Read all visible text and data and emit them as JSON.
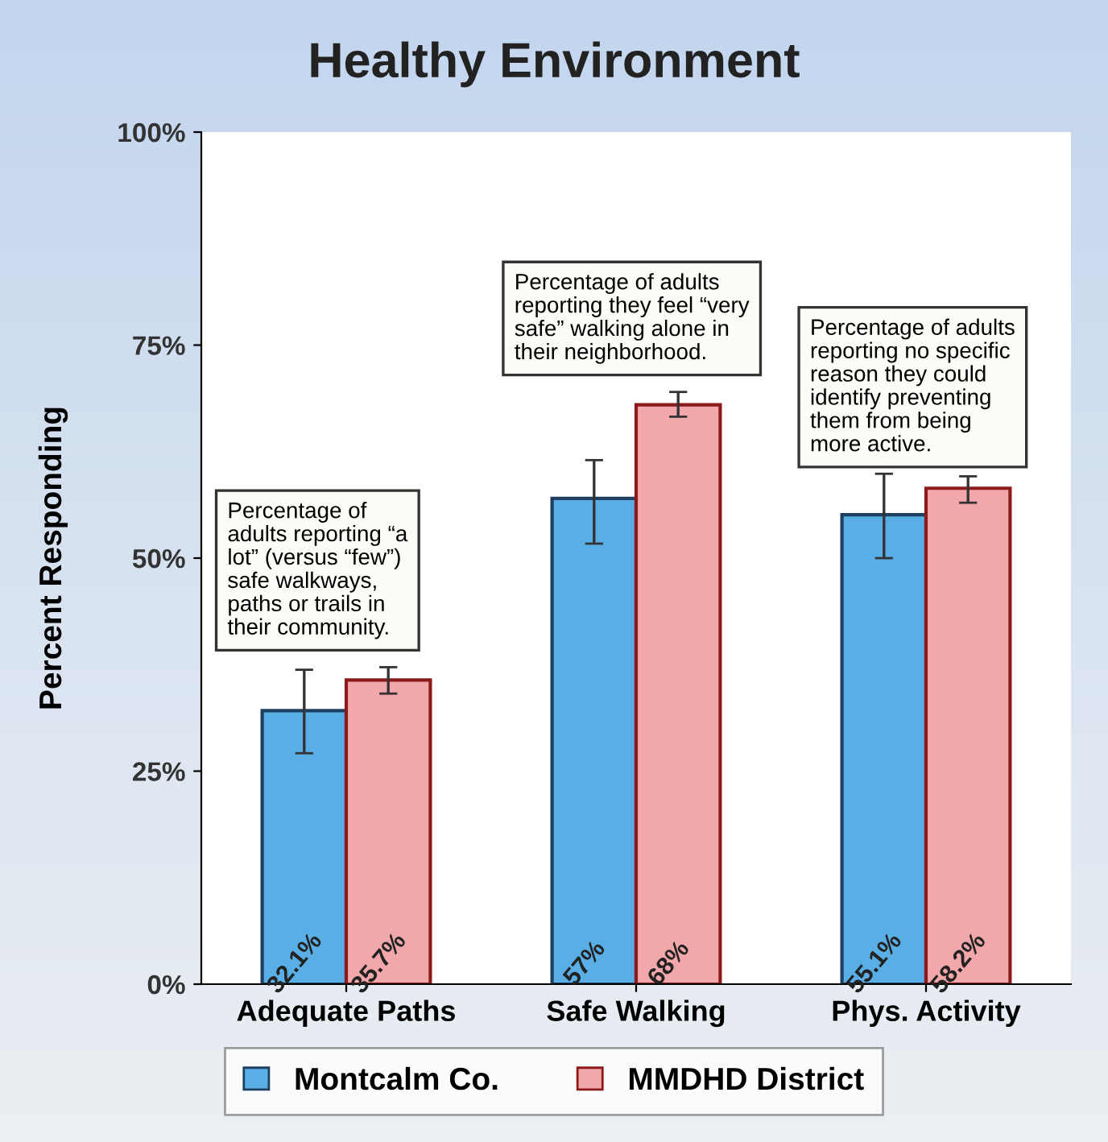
{
  "chart_data": {
    "type": "bar",
    "title": "Healthy Environment",
    "ylabel": "Percent Responding",
    "categories": [
      "Adequate Paths",
      "Safe Walking",
      "Phys. Activity"
    ],
    "series": [
      {
        "name": "Montcalm Co.",
        "color": "#5aaee6",
        "values": [
          32.1,
          57,
          55.1
        ],
        "value_labels": [
          "32.1%",
          "57%",
          "55.1%"
        ],
        "errors": [
          [
            27.1,
            36.9
          ],
          [
            51.7,
            61.5
          ],
          [
            50.0,
            59.9
          ]
        ]
      },
      {
        "name": "MMDHD District",
        "color": "#f2a7ab",
        "values": [
          35.7,
          68,
          58.2
        ],
        "value_labels": [
          "35.7%",
          "68%",
          "58.2%"
        ],
        "errors": [
          [
            34.1,
            37.2
          ],
          [
            66.6,
            69.5
          ],
          [
            56.5,
            59.6
          ]
        ]
      }
    ],
    "ylim": [
      0,
      100
    ],
    "yticks": [
      {
        "value": 0,
        "label": "0%"
      },
      {
        "value": 25,
        "label": "25%"
      },
      {
        "value": 50,
        "label": "50%"
      },
      {
        "value": 75,
        "label": "75%"
      },
      {
        "value": 100,
        "label": "100%"
      }
    ],
    "grid": false,
    "legend": "bottom",
    "annotations": [
      "Percentage of\nadults reporting “a\nlot” (versus “few”)\nsafe walkways,\npaths or trails in\ntheir community.",
      "Percentage of adults\nreporting they feel “very\nsafe” walking alone in\ntheir neighborhood.",
      "Percentage of adults\nreporting no specific\nreason they could\nidentify preventing\nthem from being\nmore active."
    ]
  }
}
